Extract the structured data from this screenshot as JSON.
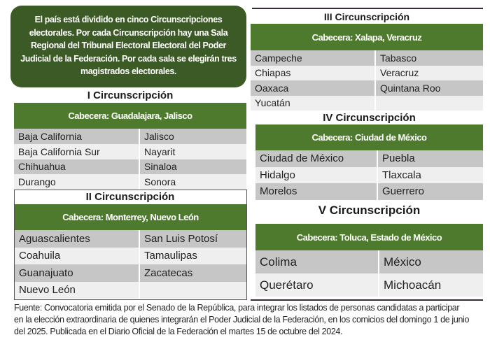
{
  "intro": "El país está dividido en cinco Circunscripciones electorales. Por cada Circunscripción hay una Sala Regional del Tribunal Electoral Electoral del Poder Judicial de la Federación. Por cada sala se elegirán tres magistrados electorales.",
  "circunscripciones": [
    {
      "title": "I Circunscripción",
      "cabecera": "Cabecera: Guadalajara, Jalisco",
      "rows": [
        [
          "Baja California",
          "Jalisco"
        ],
        [
          "Baja California Sur",
          "Nayarit"
        ],
        [
          "Chihuahua",
          "Sinaloa"
        ],
        [
          "Durango",
          "Sonora"
        ]
      ]
    },
    {
      "title": "II Circunscripción",
      "cabecera": "Cabecera: Monterrey, Nuevo León",
      "rows": [
        [
          "Aguascalientes",
          "San Luis Potosí"
        ],
        [
          "Coahuila",
          "Tamaulipas"
        ],
        [
          "Guanajuato",
          "Zacatecas"
        ],
        [
          "Nuevo León",
          ""
        ]
      ]
    },
    {
      "title": "III Circunscripción",
      "cabecera": "Cabecera: Xalapa, Veracruz",
      "rows": [
        [
          "Campeche",
          "Tabasco"
        ],
        [
          "Chiapas",
          "Veracruz"
        ],
        [
          "Oaxaca",
          "Quintana Roo"
        ],
        [
          "Yucatán",
          ""
        ]
      ]
    },
    {
      "title": "IV Circunscripción",
      "cabecera": "Cabecera: Ciudad de México",
      "rows": [
        [
          "Ciudad de México",
          "Puebla"
        ],
        [
          "Hidalgo",
          "Tlaxcala"
        ],
        [
          "Morelos",
          "Guerrero"
        ]
      ]
    },
    {
      "title": "V Circunscripción",
      "cabecera": "Cabecera: Toluca, Estado de México",
      "rows": [
        [
          "Colima",
          "México"
        ],
        [
          "Querétaro",
          "Michoacán"
        ]
      ]
    }
  ],
  "footer": [
    "Fuente: Convocatoria emitida por el Senado de la República, para integrar los listados de personas candidatas a participar",
    "en la elección extraordinaria de quienes integrarán el Poder Judicial de la Federación, en los comicios del domingo 1 de junio",
    "del 2025. Publicada en el Diario Oficial de la Federación el martes 15 de octubre del 2024."
  ],
  "colors": {
    "intro_bg": "#3b5a26",
    "header_bg": "#4d7a2c",
    "row_dark": "#c6c6c6",
    "row_light": "#efefef",
    "rule": "#3a2a40"
  }
}
